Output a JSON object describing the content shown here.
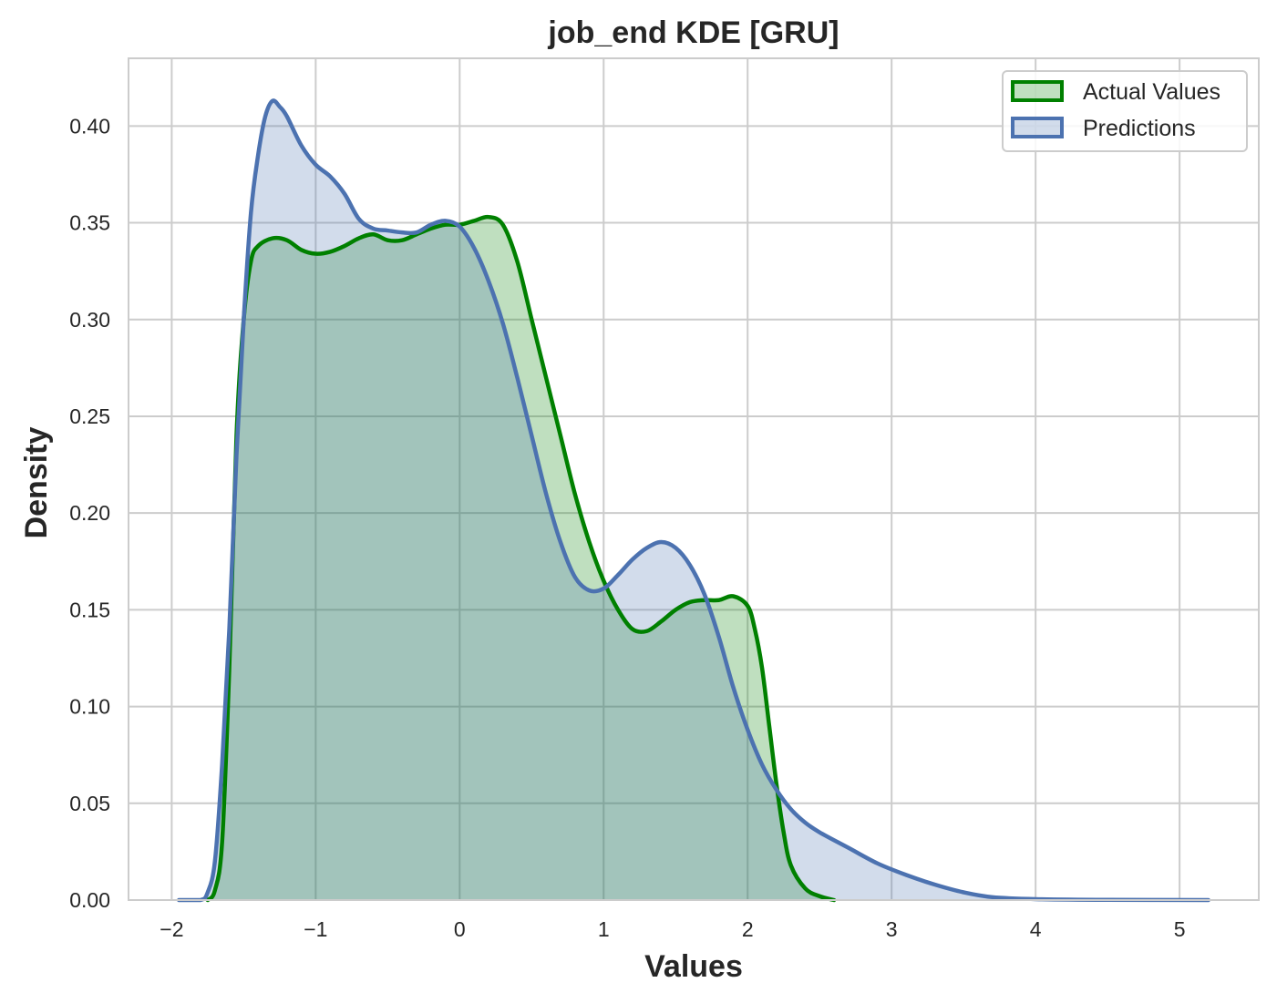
{
  "chart_data": {
    "type": "area",
    "title": "job_end KDE [GRU]",
    "xlabel": "Values",
    "ylabel": "Density",
    "xlim": [
      -2.3,
      5.55
    ],
    "ylim": [
      0,
      0.435
    ],
    "x_ticks": [
      -2,
      -1,
      0,
      1,
      2,
      3,
      4,
      5
    ],
    "x_tick_labels": [
      "−2",
      "−1",
      "0",
      "1",
      "2",
      "3",
      "4",
      "5"
    ],
    "y_ticks": [
      0.0,
      0.05,
      0.1,
      0.15,
      0.2,
      0.25,
      0.3,
      0.35,
      0.4
    ],
    "y_tick_labels": [
      "0.00",
      "0.05",
      "0.10",
      "0.15",
      "0.20",
      "0.25",
      "0.30",
      "0.35",
      "0.40"
    ],
    "grid": true,
    "legend_position": "top-right",
    "series": [
      {
        "name": "Actual Values",
        "color": "#008000",
        "fill": "#c1e0c1",
        "points": [
          [
            -1.75,
            0.0
          ],
          [
            -1.7,
            0.005
          ],
          [
            -1.65,
            0.03
          ],
          [
            -1.6,
            0.12
          ],
          [
            -1.55,
            0.24
          ],
          [
            -1.5,
            0.3
          ],
          [
            -1.45,
            0.33
          ],
          [
            -1.4,
            0.338
          ],
          [
            -1.3,
            0.342
          ],
          [
            -1.2,
            0.341
          ],
          [
            -1.1,
            0.336
          ],
          [
            -1.0,
            0.334
          ],
          [
            -0.9,
            0.335
          ],
          [
            -0.8,
            0.338
          ],
          [
            -0.7,
            0.342
          ],
          [
            -0.6,
            0.344
          ],
          [
            -0.5,
            0.341
          ],
          [
            -0.4,
            0.341
          ],
          [
            -0.3,
            0.344
          ],
          [
            -0.2,
            0.347
          ],
          [
            -0.1,
            0.349
          ],
          [
            0.0,
            0.349
          ],
          [
            0.1,
            0.351
          ],
          [
            0.2,
            0.353
          ],
          [
            0.3,
            0.349
          ],
          [
            0.4,
            0.33
          ],
          [
            0.5,
            0.3
          ],
          [
            0.6,
            0.27
          ],
          [
            0.7,
            0.24
          ],
          [
            0.8,
            0.21
          ],
          [
            0.9,
            0.185
          ],
          [
            1.0,
            0.165
          ],
          [
            1.1,
            0.15
          ],
          [
            1.2,
            0.14
          ],
          [
            1.3,
            0.139
          ],
          [
            1.4,
            0.144
          ],
          [
            1.5,
            0.15
          ],
          [
            1.6,
            0.154
          ],
          [
            1.7,
            0.155
          ],
          [
            1.8,
            0.155
          ],
          [
            1.9,
            0.157
          ],
          [
            2.0,
            0.152
          ],
          [
            2.05,
            0.14
          ],
          [
            2.1,
            0.12
          ],
          [
            2.15,
            0.09
          ],
          [
            2.2,
            0.06
          ],
          [
            2.25,
            0.035
          ],
          [
            2.3,
            0.018
          ],
          [
            2.4,
            0.006
          ],
          [
            2.5,
            0.002
          ],
          [
            2.6,
            0.0
          ]
        ]
      },
      {
        "name": "Predictions",
        "color": "#4c72b0",
        "fill": "#d0d9eb",
        "points": [
          [
            -1.95,
            0.0
          ],
          [
            -1.8,
            0.0
          ],
          [
            -1.75,
            0.004
          ],
          [
            -1.7,
            0.02
          ],
          [
            -1.65,
            0.07
          ],
          [
            -1.6,
            0.14
          ],
          [
            -1.55,
            0.23
          ],
          [
            -1.5,
            0.3
          ],
          [
            -1.45,
            0.355
          ],
          [
            -1.4,
            0.385
          ],
          [
            -1.35,
            0.405
          ],
          [
            -1.3,
            0.413
          ],
          [
            -1.25,
            0.41
          ],
          [
            -1.2,
            0.405
          ],
          [
            -1.1,
            0.39
          ],
          [
            -1.0,
            0.38
          ],
          [
            -0.9,
            0.374
          ],
          [
            -0.8,
            0.365
          ],
          [
            -0.7,
            0.352
          ],
          [
            -0.6,
            0.347
          ],
          [
            -0.5,
            0.346
          ],
          [
            -0.4,
            0.345
          ],
          [
            -0.3,
            0.345
          ],
          [
            -0.2,
            0.349
          ],
          [
            -0.1,
            0.351
          ],
          [
            0.0,
            0.348
          ],
          [
            0.1,
            0.337
          ],
          [
            0.2,
            0.32
          ],
          [
            0.3,
            0.298
          ],
          [
            0.4,
            0.27
          ],
          [
            0.5,
            0.24
          ],
          [
            0.6,
            0.21
          ],
          [
            0.7,
            0.185
          ],
          [
            0.8,
            0.167
          ],
          [
            0.9,
            0.16
          ],
          [
            1.0,
            0.161
          ],
          [
            1.1,
            0.168
          ],
          [
            1.2,
            0.176
          ],
          [
            1.3,
            0.182
          ],
          [
            1.4,
            0.185
          ],
          [
            1.5,
            0.182
          ],
          [
            1.6,
            0.173
          ],
          [
            1.7,
            0.158
          ],
          [
            1.8,
            0.136
          ],
          [
            1.9,
            0.11
          ],
          [
            2.0,
            0.088
          ],
          [
            2.1,
            0.07
          ],
          [
            2.2,
            0.057
          ],
          [
            2.3,
            0.047
          ],
          [
            2.4,
            0.04
          ],
          [
            2.5,
            0.035
          ],
          [
            2.7,
            0.027
          ],
          [
            2.9,
            0.019
          ],
          [
            3.1,
            0.013
          ],
          [
            3.3,
            0.008
          ],
          [
            3.5,
            0.004
          ],
          [
            3.7,
            0.0015
          ],
          [
            4.0,
            0.0005
          ],
          [
            4.5,
            0.0001
          ],
          [
            5.2,
            0.0
          ]
        ]
      }
    ]
  }
}
